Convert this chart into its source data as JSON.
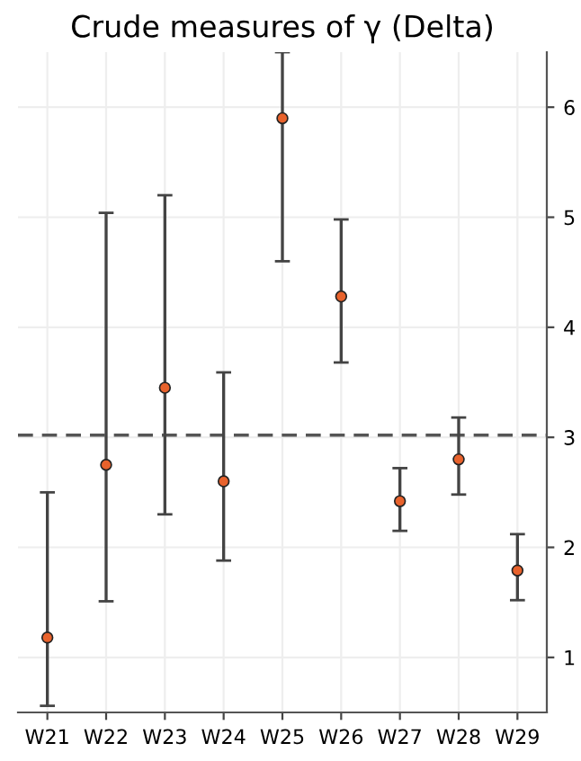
{
  "chart_data": {
    "type": "scatter",
    "title": "Crude measures of γ (Delta)",
    "categories": [
      "W21",
      "W22",
      "W23",
      "W24",
      "W25",
      "W26",
      "W27",
      "W28",
      "W29"
    ],
    "series": [
      {
        "color": "#e8622c",
        "values": [
          1.18,
          2.75,
          3.45,
          2.6,
          5.9,
          4.28,
          2.42,
          2.8,
          1.79
        ],
        "errors": [
          [
            0.56,
            2.5
          ],
          [
            1.51,
            5.04
          ],
          [
            2.3,
            5.2
          ],
          [
            1.88,
            3.59
          ],
          [
            4.6,
            6.5
          ],
          [
            3.68,
            4.98
          ],
          [
            2.15,
            2.72
          ],
          [
            2.48,
            3.18
          ],
          [
            1.52,
            2.12
          ]
        ]
      }
    ],
    "ylim": [
      0.5,
      6.5
    ],
    "yticks": [
      1,
      2,
      3,
      4,
      5,
      6
    ],
    "ref_lines": [
      {
        "axis": "y",
        "value": 3.02,
        "color": "#555555",
        "line_style": "dashed"
      }
    ],
    "grid": true,
    "marker": "circle",
    "legend": false
  }
}
